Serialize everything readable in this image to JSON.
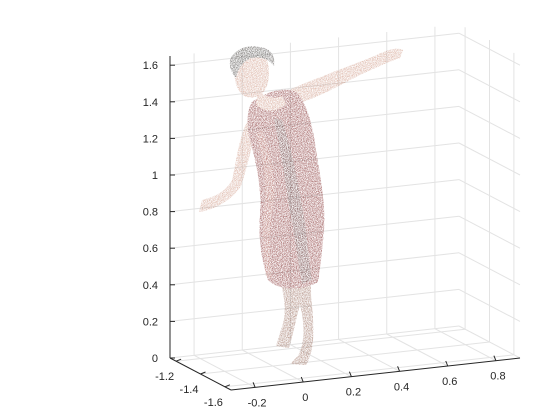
{
  "chart_data": {
    "type": "scatter",
    "render_style": "3d-point-cloud",
    "subject": "colored point cloud of a person in a red dress, arms outstretched, balancing on one foot",
    "title": "",
    "xlabel": "",
    "ylabel": "",
    "zlabel": "",
    "x_axis": {
      "ticks": [
        -0.2,
        0,
        0.2,
        0.4,
        0.6,
        0.8
      ],
      "tick_labels": [
        "-0.2",
        "0",
        "0.2",
        "0.4",
        "0.6",
        "0.8"
      ],
      "lim": [
        -0.3,
        0.9
      ]
    },
    "y_axis": {
      "ticks": [
        -1.2,
        -1.4,
        -1.6
      ],
      "tick_labels": [
        "-1.2",
        "-1.4",
        "-1.6"
      ],
      "lim": [
        -1.65,
        -1.15
      ]
    },
    "z_axis": {
      "ticks": [
        0,
        0.2,
        0.4,
        0.6,
        0.8,
        1,
        1.2,
        1.4,
        1.6
      ],
      "tick_labels": [
        "0",
        "0.2",
        "0.4",
        "0.6",
        "0.8",
        "1",
        "1.2",
        "1.4",
        "1.6"
      ],
      "lim": [
        0,
        1.65
      ]
    },
    "grid": true,
    "box": false,
    "colors": {
      "skin": "#c98c76",
      "skin_shadow": "#8d5a48",
      "hair": "#2e2a26",
      "dress": "#6e1010",
      "dress_dark": "#3c0707",
      "dress_highlight": "#8e2a22",
      "gridline": "#e3e3e3",
      "axis": "#262626"
    }
  }
}
